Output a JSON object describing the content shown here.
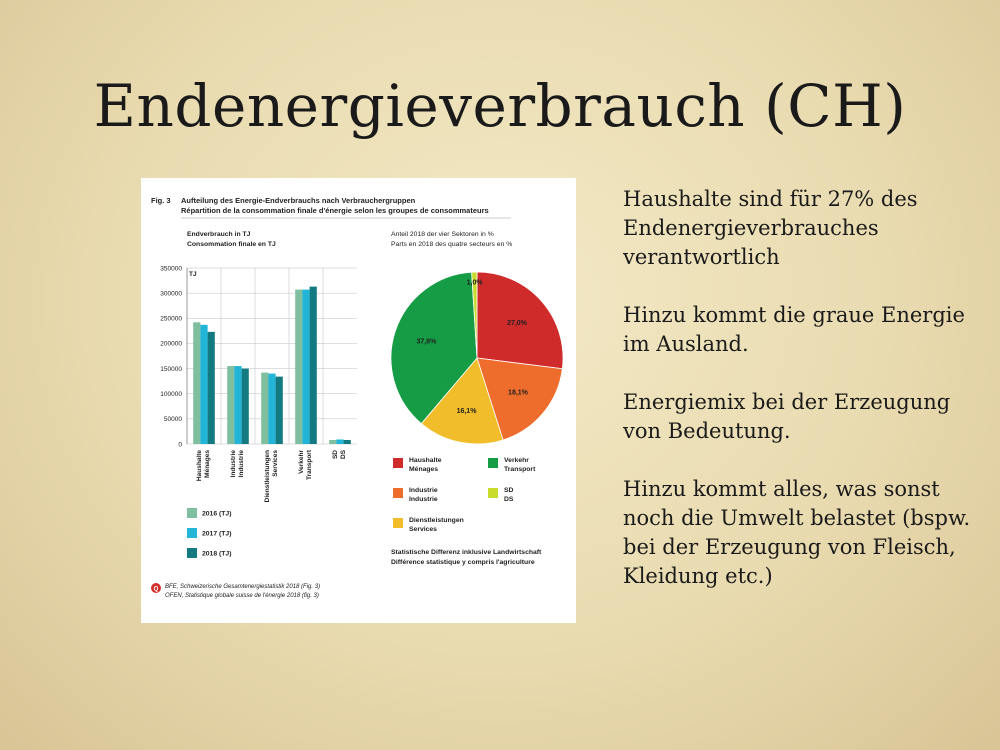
{
  "slide": {
    "title": "Endenergieverbrauch (CH)",
    "paragraphs": [
      "Haushalte sind für 27% des Endenergieverbrauches verantwortlich",
      "Hinzu kommt die graue Energie im Ausland.",
      "Energiemix bei der Erzeugung von Bedeutung.",
      "Hinzu kommt alles, was sonst noch die Umwelt belastet (bspw. bei der Erzeugung von Fleisch, Kleidung etc.)"
    ]
  },
  "figure": {
    "fig_label": "Fig. 3",
    "title_de": "Aufteilung des Energie-Endverbrauchs nach Verbrauchergruppen",
    "title_fr": "Répartition de la consommation finale d'énergie selon les groupes de consommateurs",
    "source_de": "BFE, Schweizerische Gesamtenergiestatistik 2018 (Fig. 3)",
    "source_fr": "OFEN, Statistique globale suisse de l'énergie 2018 (fig. 3)",
    "footnote_de": "Statistische Differenz inklusive Landwirtschaft",
    "footnote_fr": "Différence statistique y compris l'agriculture"
  },
  "chart_data": [
    {
      "type": "bar",
      "title": "Endverbrauch in TJ",
      "subtitle": "Consommation finale en TJ",
      "ylabel": "TJ",
      "ylim": [
        0,
        350000
      ],
      "yticks": [
        "0",
        "50000",
        "100000",
        "150000",
        "200000",
        "250000",
        "300000",
        "350000"
      ],
      "categories": [
        [
          "Haushalte",
          "Ménages"
        ],
        [
          "Industrie",
          "Industrie"
        ],
        [
          "Dienstleistungen",
          "Services"
        ],
        [
          "Verkehr",
          "Transport"
        ],
        [
          "SD",
          "DS"
        ]
      ],
      "series": [
        {
          "name": "2016 (TJ)",
          "color": "#7fbf9f",
          "values": [
            242000,
            155000,
            142000,
            307000,
            8000
          ]
        },
        {
          "name": "2017 (TJ)",
          "color": "#22b5d8",
          "values": [
            237000,
            155000,
            140000,
            307000,
            9000
          ]
        },
        {
          "name": "2018 (TJ)",
          "color": "#147a82",
          "values": [
            223000,
            150000,
            134000,
            313000,
            8000
          ]
        }
      ],
      "grid": true,
      "legend": "bottom-left"
    },
    {
      "type": "pie",
      "title": "Anteil 2018 der vier Sektoren in %",
      "subtitle": "Parts en 2018 des quatre secteurs en %",
      "slices": [
        {
          "label_de": "Haushalte",
          "label_fr": "Ménages",
          "value": 27.0,
          "label": "27,0%",
          "color": "#d02b2b"
        },
        {
          "label_de": "Industrie",
          "label_fr": "Industrie",
          "value": 18.1,
          "label": "18,1%",
          "color": "#ee6d2c"
        },
        {
          "label_de": "Dienstleistungen",
          "label_fr": "Services",
          "value": 16.1,
          "label": "16,1%",
          "color": "#f2bd2a"
        },
        {
          "label_de": "Verkehr",
          "label_fr": "Transport",
          "value": 37.8,
          "label": "37,8%",
          "color": "#169c44"
        },
        {
          "label_de": "SD",
          "label_fr": "DS",
          "value": 1.0,
          "label": "1,0%",
          "color": "#c9dc2c"
        }
      ],
      "legend": "bottom"
    }
  ]
}
